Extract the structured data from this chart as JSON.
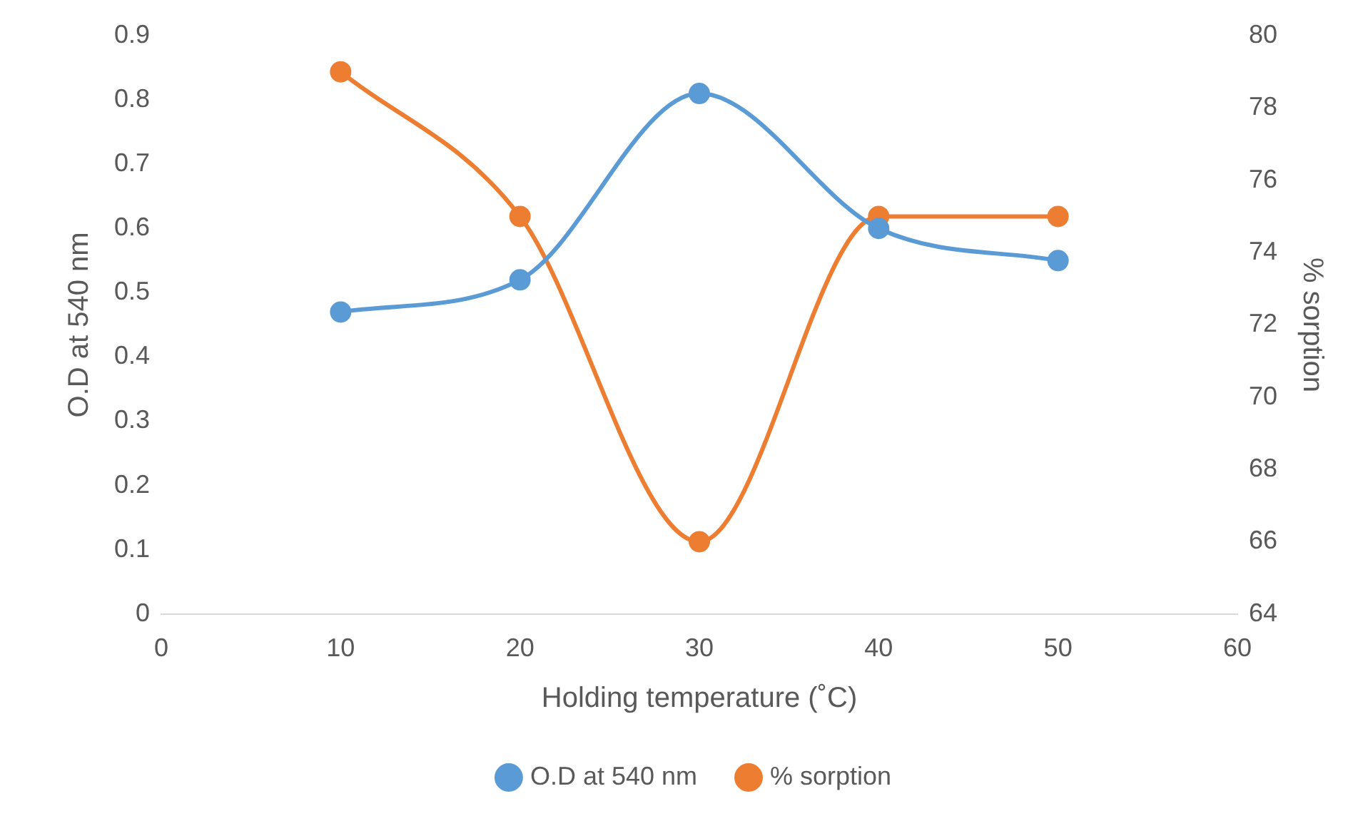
{
  "chart_data": {
    "type": "line",
    "xlabel": "Holding temperature (˚C)",
    "ylabel": "O.D at 540 nm",
    "y2label": "% sorption",
    "x": [
      10,
      20,
      30,
      40,
      50
    ],
    "series": [
      {
        "name": "O.D at 540 nm",
        "color": "#5b9bd5",
        "values": [
          0.47,
          0.52,
          0.81,
          0.6,
          0.55
        ]
      },
      {
        "name": "% sorption",
        "color": "#ed7d31",
        "values": [
          79,
          75,
          66,
          75,
          75
        ],
        "axis": "y2"
      }
    ],
    "xlim": [
      0,
      60
    ],
    "xticks": [
      0,
      10,
      20,
      30,
      40,
      50,
      60
    ],
    "ylim": [
      0,
      0.9
    ],
    "yticks": [
      0,
      0.1,
      0.2,
      0.3,
      0.4,
      0.5,
      0.6,
      0.7,
      0.8,
      0.9
    ],
    "y2lim": [
      64,
      80
    ],
    "y2ticks": [
      64,
      66,
      68,
      70,
      72,
      74,
      76,
      78,
      80
    ],
    "grid": false,
    "legend": "bottom",
    "marker": "circle",
    "line_style": "solid"
  }
}
